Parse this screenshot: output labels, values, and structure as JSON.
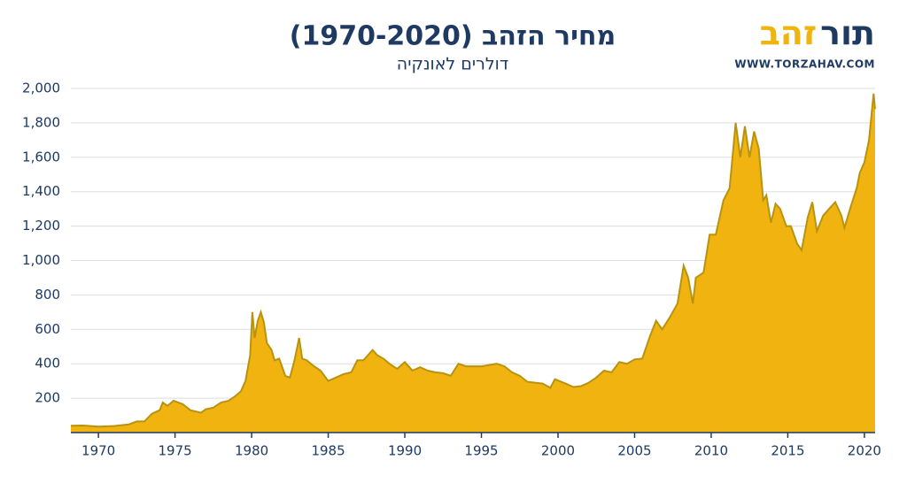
{
  "chart_data": {
    "type": "area",
    "title": "מחיר הזהב (1970-2020)",
    "subtitle": "דולרים לאונקיה",
    "logo_words": [
      "תור",
      "זהב"
    ],
    "logo_colors": [
      "#1e3a63",
      "#f0b310"
    ],
    "website": "WWW.TORZAHAV.COM",
    "color": "#f0b310",
    "line_color": "#b8930f",
    "x": [
      1968.2,
      1969,
      1970,
      1971,
      1972,
      1972.5,
      1973,
      1973.5,
      1974,
      1974.2,
      1974.5,
      1974.9,
      1975.5,
      1976,
      1976.7,
      1977,
      1977.5,
      1978,
      1978.5,
      1978.9,
      1979.3,
      1979.6,
      1979.9,
      1980.05,
      1980.2,
      1980.4,
      1980.6,
      1980.8,
      1981,
      1981.3,
      1981.5,
      1981.8,
      1982.2,
      1982.5,
      1982.8,
      1983.1,
      1983.3,
      1983.6,
      1984,
      1984.5,
      1985,
      1985.5,
      1986,
      1986.5,
      1986.9,
      1987.3,
      1987.9,
      1988.2,
      1988.6,
      1989,
      1989.5,
      1990,
      1990.5,
      1991,
      1991.5,
      1992,
      1992.5,
      1993,
      1993.5,
      1994,
      1995,
      1996,
      1996.5,
      1997,
      1997.5,
      1998,
      1998.5,
      1999,
      1999.5,
      1999.8,
      2000.5,
      2001,
      2001.5,
      2002,
      2002.5,
      2003,
      2003.5,
      2004,
      2004.5,
      2005,
      2005.5,
      2006,
      2006.4,
      2006.8,
      2007.3,
      2007.8,
      2008.2,
      2008.5,
      2008.8,
      2009,
      2009.5,
      2009.9,
      2010.3,
      2010.8,
      2011.2,
      2011.6,
      2011.9,
      2012.2,
      2012.5,
      2012.8,
      2013.1,
      2013.4,
      2013.6,
      2013.9,
      2014.2,
      2014.5,
      2014.9,
      2015.2,
      2015.6,
      2015.9,
      2016.3,
      2016.6,
      2016.9,
      2017.3,
      2017.7,
      2018.1,
      2018.5,
      2018.7,
      2019.1,
      2019.5,
      2019.7,
      2020,
      2020.3,
      2020.6,
      2020.7
    ],
    "values": [
      40,
      41,
      35,
      38,
      48,
      65,
      65,
      110,
      130,
      175,
      155,
      185,
      165,
      130,
      115,
      135,
      145,
      175,
      185,
      210,
      240,
      300,
      450,
      700,
      550,
      650,
      700,
      640,
      520,
      480,
      420,
      430,
      330,
      320,
      420,
      550,
      430,
      420,
      390,
      360,
      300,
      320,
      340,
      350,
      420,
      420,
      480,
      450,
      430,
      400,
      370,
      410,
      360,
      380,
      360,
      350,
      345,
      330,
      400,
      385,
      385,
      400,
      385,
      350,
      330,
      295,
      290,
      285,
      260,
      310,
      285,
      265,
      270,
      290,
      320,
      360,
      350,
      410,
      400,
      425,
      430,
      560,
      650,
      600,
      670,
      750,
      970,
      900,
      750,
      900,
      930,
      1150,
      1150,
      1350,
      1420,
      1800,
      1600,
      1780,
      1600,
      1750,
      1650,
      1350,
      1380,
      1220,
      1330,
      1300,
      1200,
      1200,
      1100,
      1060,
      1250,
      1340,
      1170,
      1260,
      1300,
      1340,
      1260,
      1190,
      1310,
      1420,
      1510,
      1570,
      1700,
      1970,
      1880
    ],
    "xlim": [
      1968.2,
      2020.7
    ],
    "xticks": [
      1970,
      1975,
      1980,
      1985,
      1990,
      1995,
      2000,
      2005,
      2010,
      2015,
      2020
    ],
    "ylim": [
      0,
      2000
    ],
    "yticks": [
      200,
      400,
      600,
      800,
      {
        "value": 1000,
        "label": "1,000"
      },
      {
        "value": 1200,
        "label": "1,200"
      },
      {
        "value": 1400,
        "label": "1,400"
      },
      {
        "value": 1600,
        "label": "1,600"
      },
      {
        "value": 1800,
        "label": "1,800"
      },
      {
        "value": 2000,
        "label": "2,000"
      }
    ],
    "grid": true
  }
}
